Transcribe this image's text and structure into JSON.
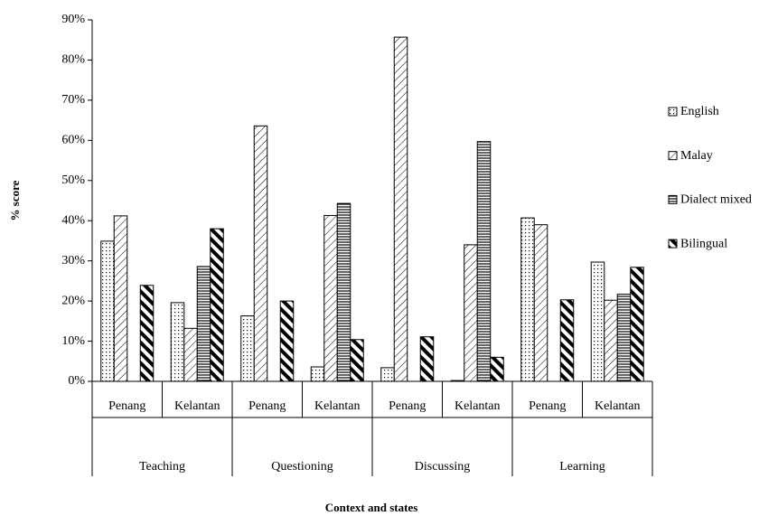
{
  "chart_data": {
    "type": "bar",
    "y_label": "% score",
    "x_label": "Context and states",
    "categories": [
      "Penang",
      "Kelantan",
      "Penang",
      "Kelantan",
      "Penang",
      "Kelantan",
      "Penang",
      "Kelantan"
    ],
    "category_groups": [
      "Teaching",
      "Questioning",
      "Discussing",
      "Learning"
    ],
    "series": [
      {
        "name": "English",
        "pattern": "dots",
        "color": "#000000",
        "values": [
          34.9,
          19.6,
          16.3,
          3.6,
          3.4,
          0.2,
          40.7,
          29.7
        ]
      },
      {
        "name": "Malay",
        "pattern": "diagonal",
        "color": "#000000",
        "values": [
          41.2,
          13.2,
          63.6,
          41.3,
          85.7,
          34.0,
          39.0,
          20.2
        ]
      },
      {
        "name": "Dialect mixed",
        "pattern": "horizontal",
        "color": "#000000",
        "values": [
          0,
          28.6,
          0,
          44.3,
          0,
          59.7,
          0,
          21.7
        ]
      },
      {
        "name": "Bilingual",
        "pattern": "thick-diagonal",
        "color": "#000000",
        "values": [
          23.9,
          38.0,
          20.0,
          10.4,
          11.1,
          6.0,
          20.3,
          28.4
        ]
      }
    ],
    "ylim": [
      0,
      90
    ],
    "yticks": [
      {
        "value": 0,
        "label": "0%"
      },
      {
        "value": 10,
        "label": "10%"
      },
      {
        "value": 20,
        "label": "20%"
      },
      {
        "value": 30,
        "label": "30%"
      },
      {
        "value": 40,
        "label": "40%"
      },
      {
        "value": 50,
        "label": "50%"
      },
      {
        "value": 60,
        "label": "60%"
      },
      {
        "value": 70,
        "label": "70%"
      },
      {
        "value": 80,
        "label": "80%"
      },
      {
        "value": 90,
        "label": "90%"
      }
    ],
    "grid": false,
    "legend": "right"
  }
}
